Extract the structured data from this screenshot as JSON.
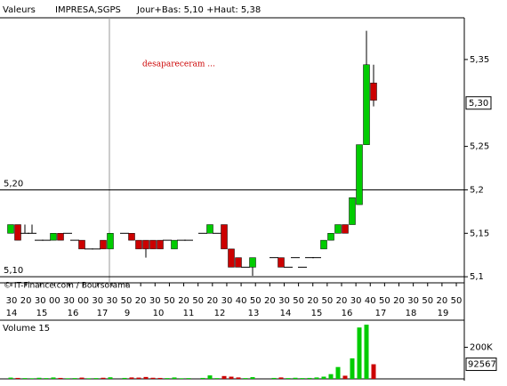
{
  "chart_data": {
    "type": "candlestick",
    "header": {
      "section": "Valeurs",
      "symbol": "IMPRESA,SGPS",
      "range": "Jour+Bas: 5,10 +Haut: 5,38"
    },
    "annotation": "desapareceram ...",
    "source": "© IT-Finance.com / Boursorama",
    "volume_title": "Volume 15",
    "open": [
      5.15,
      5.16,
      5.15,
      5.15,
      5.142,
      5.142,
      5.142,
      5.15,
      5.15,
      5.142,
      5.142,
      5.132,
      5.132,
      5.142,
      5.132,
      null,
      5.15,
      5.15,
      5.142,
      5.142,
      5.142,
      5.142,
      5.142,
      5.132,
      5.142,
      5.142,
      null,
      5.15,
      5.15,
      5.15,
      5.16,
      5.132,
      5.122,
      5.111,
      5.111,
      null,
      null,
      5.122,
      5.122,
      5.111,
      5.122,
      5.111,
      5.122,
      5.122,
      5.132,
      5.142,
      5.15,
      5.16,
      5.16,
      5.183,
      5.252,
      5.323
    ],
    "high": [
      5.16,
      5.16,
      5.16,
      5.16,
      5.142,
      5.142,
      5.15,
      5.15,
      5.15,
      5.142,
      5.142,
      5.132,
      5.132,
      5.142,
      5.15,
      null,
      5.15,
      5.15,
      5.142,
      5.142,
      5.142,
      5.142,
      5.142,
      5.142,
      5.142,
      5.142,
      null,
      5.15,
      5.16,
      5.15,
      5.16,
      5.132,
      5.122,
      5.111,
      5.122,
      null,
      null,
      5.122,
      5.122,
      5.111,
      5.122,
      5.111,
      5.122,
      5.122,
      5.142,
      5.15,
      5.16,
      5.16,
      5.191,
      5.252,
      5.383,
      5.344
    ],
    "low": [
      5.15,
      5.142,
      5.15,
      5.15,
      5.142,
      5.142,
      5.142,
      5.142,
      5.15,
      5.142,
      5.132,
      5.132,
      5.132,
      5.132,
      5.132,
      null,
      5.15,
      5.142,
      5.132,
      5.122,
      5.132,
      5.132,
      5.142,
      5.132,
      5.142,
      5.142,
      null,
      5.15,
      5.15,
      5.15,
      5.132,
      5.111,
      5.111,
      5.111,
      5.101,
      null,
      null,
      5.122,
      5.111,
      5.111,
      5.122,
      5.111,
      5.122,
      5.122,
      5.132,
      5.142,
      5.15,
      5.15,
      5.16,
      5.183,
      5.252,
      5.296
    ],
    "close": [
      5.16,
      5.142,
      5.15,
      5.15,
      5.142,
      5.142,
      5.15,
      5.142,
      5.15,
      5.142,
      5.132,
      5.132,
      5.132,
      5.132,
      5.15,
      null,
      5.15,
      5.142,
      5.132,
      5.132,
      5.132,
      5.132,
      5.142,
      5.142,
      5.142,
      5.142,
      null,
      5.15,
      5.16,
      5.15,
      5.132,
      5.111,
      5.111,
      5.111,
      5.122,
      null,
      null,
      5.122,
      5.111,
      5.111,
      5.122,
      5.111,
      5.122,
      5.122,
      5.142,
      5.15,
      5.16,
      5.15,
      5.191,
      5.252,
      5.344,
      5.303
    ],
    "volume": [
      8000,
      6000,
      5000,
      4000,
      7000,
      5000,
      9000,
      6000,
      4000,
      5000,
      8000,
      4000,
      5000,
      7000,
      10000,
      null,
      6000,
      9000,
      8000,
      12000,
      7000,
      6000,
      5000,
      9000,
      4000,
      5000,
      null,
      6000,
      22000,
      5000,
      18000,
      14000,
      9000,
      5000,
      11000,
      null,
      null,
      6000,
      9000,
      5000,
      7000,
      5000,
      6000,
      9000,
      14000,
      30000,
      75000,
      20000,
      130000,
      325000,
      343000,
      92567
    ],
    "ylim": [
      5.093,
      5.398
    ],
    "yticks": [
      {
        "value": 5.35,
        "label": "5,35"
      },
      {
        "value": 5.25,
        "label": "5,25"
      },
      {
        "value": 5.2,
        "label": "5,2"
      },
      {
        "value": 5.15,
        "label": "5,15"
      },
      {
        "value": 5.1,
        "label": "5,1"
      }
    ],
    "last_price": {
      "value": 5.3,
      "label": "5,30"
    },
    "ref_lines": [
      {
        "value": 5.2,
        "label": "5,20"
      },
      {
        "value": 5.1,
        "label": "5,10"
      }
    ],
    "vol_ylim": [
      0,
      360000
    ],
    "vol_yticks": [
      {
        "value": 200000,
        "label": "200K"
      }
    ],
    "last_volume": 92567,
    "time_labels": [
      "30",
      "20",
      "30",
      "00",
      "30",
      "00",
      "30",
      "30",
      "50",
      "20",
      "30",
      "50",
      "20",
      "50",
      "20",
      "30",
      "40",
      "50",
      "20",
      "30",
      "50",
      "20",
      "50",
      "20",
      "30",
      "40",
      "50",
      "20",
      "30",
      "50",
      "20",
      "50"
    ],
    "day_labels": [
      "14",
      "15",
      "16",
      "17",
      "9",
      "10",
      "11",
      "12",
      "13",
      "14",
      "15",
      "16",
      "17",
      "18",
      "19"
    ],
    "up_color": "#00cc00",
    "down_color": "#cc0000"
  }
}
